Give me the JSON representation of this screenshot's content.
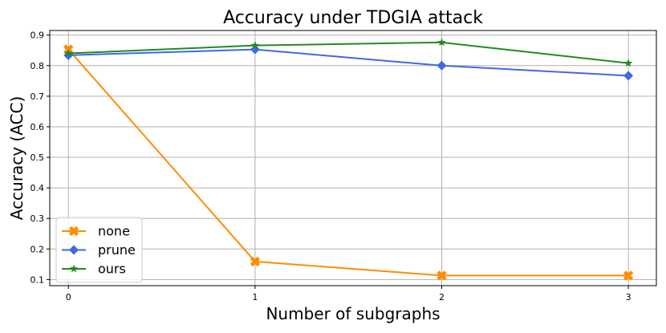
{
  "chart_data": {
    "type": "line",
    "title": "Accuracy under TDGIA attack",
    "xlabel": "Number of subgraphs",
    "ylabel": "Accuracy (ACC)",
    "x": [
      0,
      1,
      2,
      3
    ],
    "xticks": [
      "0",
      "1",
      "2",
      "3"
    ],
    "yticks": [
      "0.1",
      "0.2",
      "0.3",
      "0.4",
      "0.5",
      "0.6",
      "0.7",
      "0.8",
      "0.9"
    ],
    "ylim": [
      0.08,
      0.915
    ],
    "xlim": [
      -0.1,
      3.15
    ],
    "grid": true,
    "legend_position": "lower-left",
    "series": [
      {
        "name": "none",
        "color": "#ff8c00",
        "marker": "x-filled",
        "values": [
          0.853,
          0.159,
          0.113,
          0.113
        ]
      },
      {
        "name": "prune",
        "color": "#4169e1",
        "marker": "diamond",
        "values": [
          0.834,
          0.853,
          0.8,
          0.767
        ]
      },
      {
        "name": "ours",
        "color": "#228b22",
        "marker": "star",
        "values": [
          0.84,
          0.866,
          0.876,
          0.808
        ]
      }
    ]
  }
}
